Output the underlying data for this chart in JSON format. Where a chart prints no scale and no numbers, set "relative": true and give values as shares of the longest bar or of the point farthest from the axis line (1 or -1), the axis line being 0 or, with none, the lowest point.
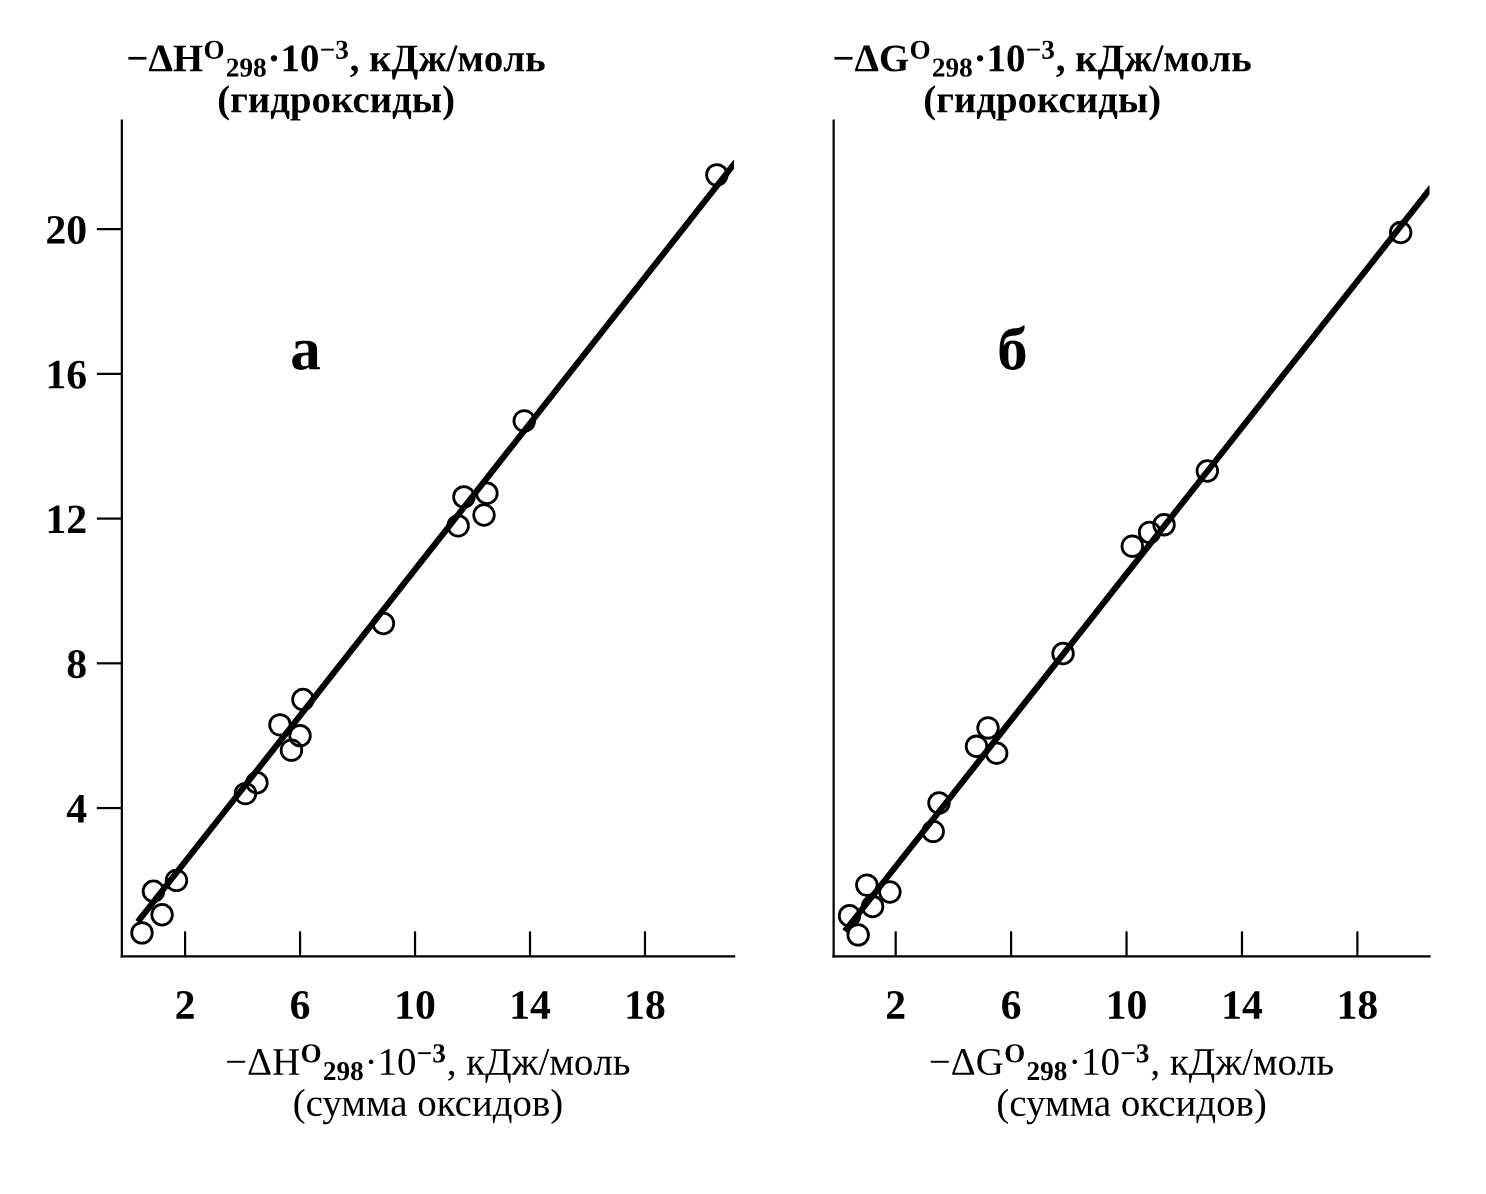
{
  "chart_data": [
    {
      "type": "scatter",
      "xlabel": "−ΔH$^{O}$$_{298}$·10$^{−3}$, кДж/моль\n(сумма оксидов)",
      "ylabel": "−ΔH$^{O}$$_{298}$·10$^{−3}$, кДж/моль\n(гидроксиды)",
      "annotations": [
        "а"
      ],
      "xlim": [
        -0.2,
        21.1
      ],
      "ylim": [
        -0.1,
        23.0
      ],
      "xticks": [
        2,
        6,
        10,
        14,
        18
      ],
      "yticks": [
        4,
        8,
        12,
        16,
        20
      ],
      "grid": false,
      "legend": false,
      "series": [
        {
          "color": "#000000",
          "marker": "circle",
          "x": [
            0.5,
            0.9,
            1.2,
            1.7,
            4.1,
            4.5,
            5.3,
            5.7,
            6.0,
            6.1,
            8.9,
            11.5,
            11.7,
            12.4,
            12.5,
            13.8,
            20.5
          ],
          "values": [
            0.55,
            1.7,
            1.05,
            2.0,
            4.4,
            4.7,
            6.3,
            5.6,
            6.0,
            7.0,
            9.1,
            11.8,
            12.6,
            12.1,
            12.7,
            14.7,
            21.5
          ]
        },
        {
          "type": "line",
          "color": "#000000",
          "x": [
            0.42,
            21.1
          ],
          "values": [
            0.92,
            21.8
          ]
        }
      ]
    },
    {
      "type": "scatter",
      "xlabel": "−ΔG$^{O}$$_{298}$·10$^{−3}$, кДж/моль\n(сумма оксидов)",
      "ylabel": "−ΔG$^{O}$$_{298}$·10$^{−3}$, кДж/моль\n(гидроксиды)",
      "annotations": [
        "б"
      ],
      "xlim": [
        -0.15,
        20.5
      ],
      "xticks": [
        2,
        6,
        10,
        14,
        18
      ],
      "relative": true,
      "grid": false,
      "legend": false,
      "series": [
        {
          "color": "#000000",
          "marker": "circle",
          "x": [
            0.4,
            0.7,
            1.0,
            1.2,
            1.8,
            3.3,
            3.5,
            4.8,
            5.2,
            5.5,
            7.8,
            10.2,
            10.8,
            11.3,
            12.8,
            19.5
          ],
          "values": [
            0.053,
            0.028,
            0.093,
            0.065,
            0.084,
            0.163,
            0.2,
            0.274,
            0.298,
            0.265,
            0.395,
            0.535,
            0.553,
            0.563,
            0.633,
            0.944
          ]
        },
        {
          "type": "line",
          "color": "#000000",
          "x": [
            0.3,
            20.5
          ],
          "values": [
            0.036,
            1.0
          ]
        }
      ]
    }
  ]
}
